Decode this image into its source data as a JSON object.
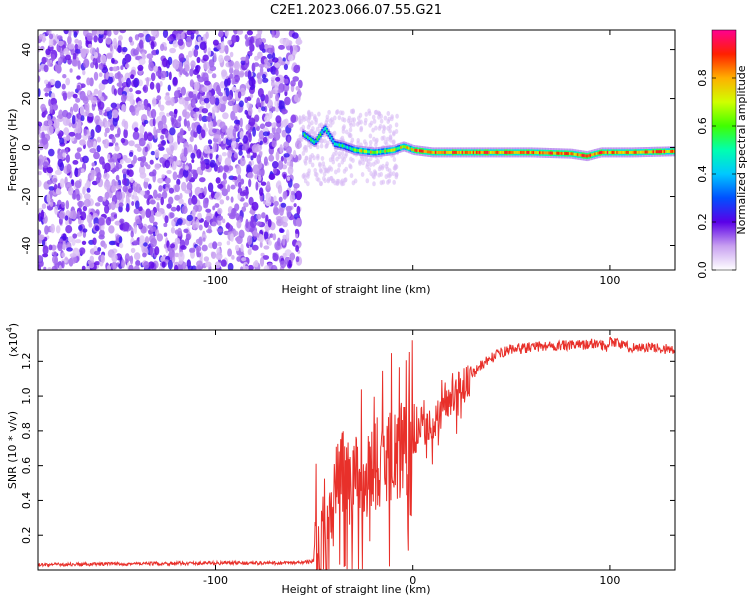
{
  "title": "C2E1.2023.066.07.55.G21",
  "chart_data": [
    {
      "type": "heatmap",
      "x_range": [
        -190,
        133
      ],
      "y_range": [
        -50,
        48
      ],
      "xlabel": "Height of straight line (km)",
      "ylabel": "Frequency (Hz)",
      "x_ticks": [
        -100,
        0,
        100
      ],
      "x_tick_labels": [
        "-100",
        "",
        "100"
      ],
      "y_ticks": [
        -40,
        -20,
        0,
        20,
        40
      ],
      "y_tick_labels": [
        "-40",
        "-20",
        "0",
        "20",
        "40"
      ],
      "colorbar": {
        "label": "Normalized spectral amplitude",
        "range": [
          0.0,
          1.0
        ],
        "ticks": [
          0.0,
          0.2,
          0.4,
          0.6,
          0.8
        ],
        "tick_labels": [
          "0.0",
          "0.2",
          "0.4",
          "0.6",
          "0.8"
        ]
      },
      "noise_region": {
        "x": [
          -190,
          -57
        ],
        "amplitude": 0.25
      },
      "ridge": [
        {
          "x": -55,
          "freq": 5.0
        },
        {
          "x": -50,
          "freq": 2.0
        },
        {
          "x": -45,
          "freq": 8.0
        },
        {
          "x": -40,
          "freq": 1.5
        },
        {
          "x": -35,
          "freq": 0.5
        },
        {
          "x": -30,
          "freq": -1.0
        },
        {
          "x": -20,
          "freq": -2.0
        },
        {
          "x": -10,
          "freq": -1.0
        },
        {
          "x": -5,
          "freq": 0.5
        },
        {
          "x": 0,
          "freq": -1.0
        },
        {
          "x": 10,
          "freq": -2.0
        },
        {
          "x": 30,
          "freq": -2.0
        },
        {
          "x": 60,
          "freq": -2.0
        },
        {
          "x": 80,
          "freq": -2.5
        },
        {
          "x": 88,
          "freq": -3.5
        },
        {
          "x": 95,
          "freq": -2.0
        },
        {
          "x": 110,
          "freq": -2.0
        },
        {
          "x": 133,
          "freq": -1.5
        }
      ]
    },
    {
      "type": "line",
      "x_range": [
        -190,
        133
      ],
      "y_range": [
        0,
        1.38
      ],
      "y_scale_label": "(x10",
      "y_scale_exp": "4",
      "y_scale_close": ")",
      "xlabel": "Height of straight line (km)",
      "ylabel": "SNR (10 * v/v)",
      "x_ticks": [
        -100,
        0,
        100
      ],
      "x_tick_labels": [
        "-100",
        "0",
        "100"
      ],
      "y_ticks": [
        0.2,
        0.4,
        0.6,
        0.8,
        1.0,
        1.2
      ],
      "y_tick_labels": [
        "0.2",
        "0.4",
        "0.6",
        "0.8",
        "1.0",
        "1.2"
      ],
      "color": "#e8302a",
      "series": [
        {
          "x": [
            -190,
            -150,
            -100,
            -60,
            -50,
            -45,
            -42,
            -40,
            -38,
            -35,
            -32,
            -30,
            -28,
            -25,
            -20,
            -15,
            -10,
            -5,
            0,
            5,
            10,
            15,
            20,
            25,
            30,
            35,
            40,
            45,
            50,
            60,
            70,
            80,
            90,
            95,
            98,
            100,
            110,
            120,
            130,
            133
          ],
          "y": [
            0.03,
            0.035,
            0.04,
            0.04,
            0.05,
            0.1,
            0.25,
            0.35,
            0.5,
            0.55,
            0.4,
            0.55,
            0.6,
            0.55,
            0.6,
            0.62,
            0.65,
            0.68,
            0.75,
            0.78,
            0.85,
            0.92,
            1.0,
            1.05,
            1.12,
            1.18,
            1.22,
            1.25,
            1.27,
            1.28,
            1.29,
            1.29,
            1.3,
            1.3,
            1.28,
            1.32,
            1.28,
            1.28,
            1.27,
            1.26
          ]
        }
      ]
    }
  ]
}
